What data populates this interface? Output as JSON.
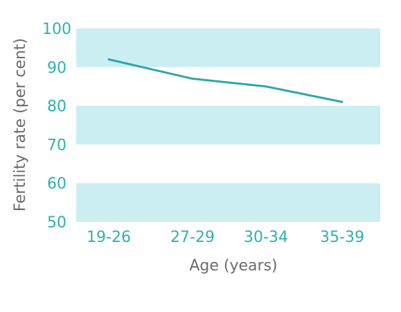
{
  "chart_data": {
    "type": "line",
    "categories": [
      "19-26",
      "27-29",
      "30-34",
      "35-39"
    ],
    "values": [
      92,
      87,
      85,
      81
    ],
    "xlabel": "Age (years)",
    "ylabel": "Fertility rate (per cent)",
    "ylim": [
      50,
      100
    ],
    "yticks": [
      50,
      60,
      70,
      80,
      90,
      100
    ],
    "bands": [
      [
        60,
        50
      ],
      [
        80,
        70
      ],
      [
        100,
        90
      ]
    ],
    "grid": false,
    "colors": {
      "line": "#2aa8a8",
      "tick_text": "#2fb0b0",
      "band": "#cbeef2",
      "axis_label": "#6b6b6b"
    }
  }
}
